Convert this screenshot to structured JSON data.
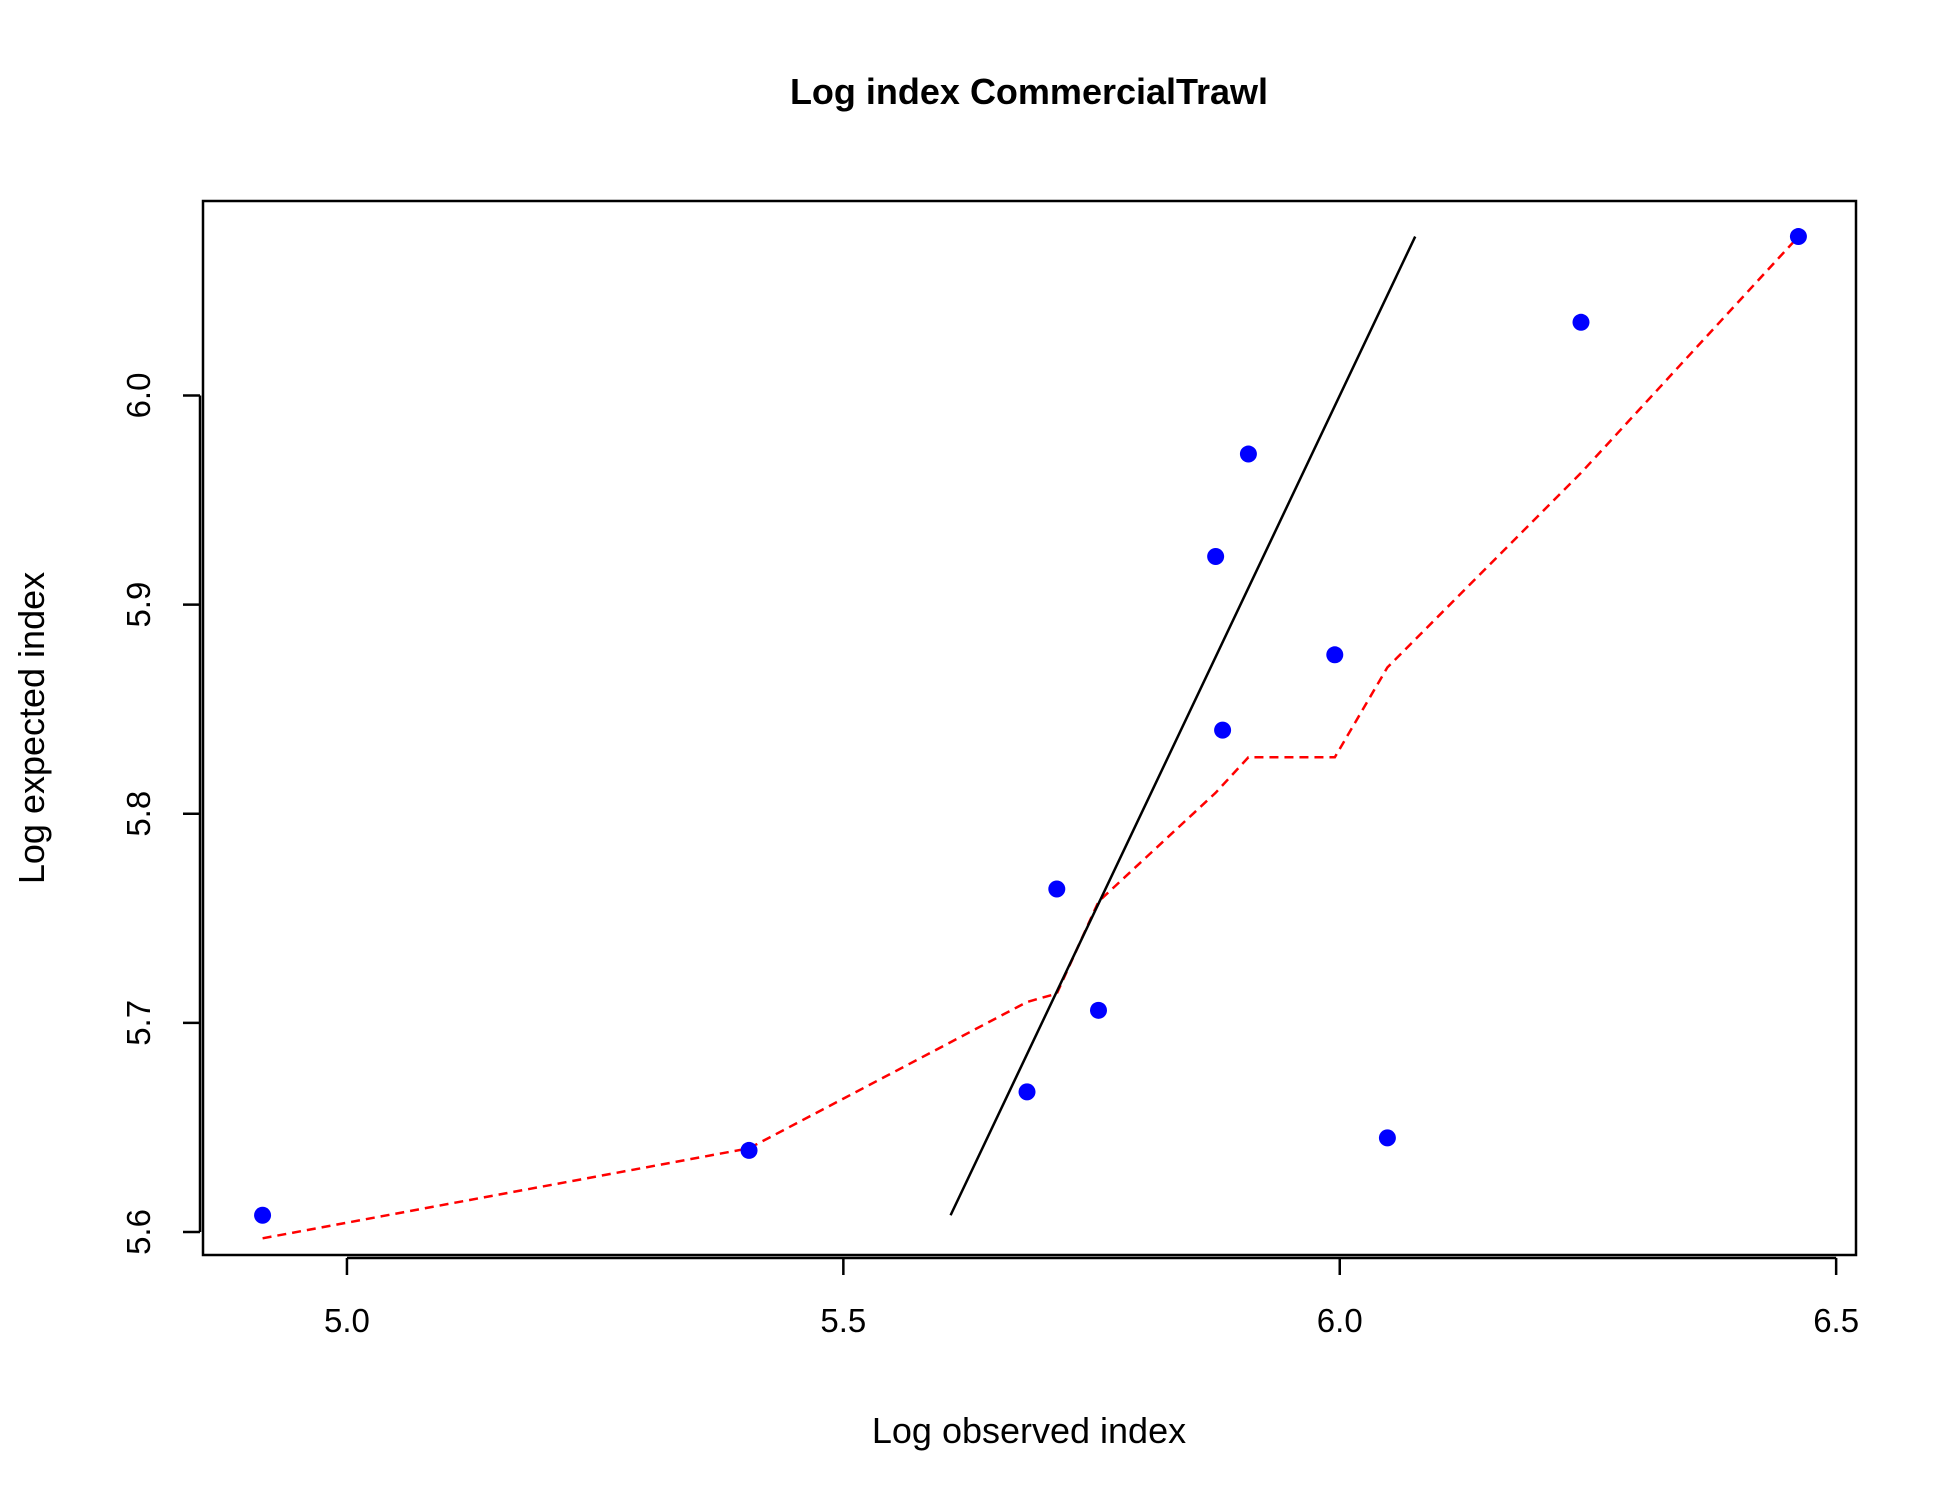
{
  "chart_data": {
    "type": "scatter",
    "title": "Log index CommercialTrawl",
    "xlabel": "Log observed index",
    "ylabel": "Log expected index",
    "xlim": [
      4.855,
      6.52
    ],
    "ylim": [
      5.589,
      6.093
    ],
    "xticks": [
      "5.0",
      "5.5",
      "6.0",
      "6.5"
    ],
    "yticks": [
      "5.6",
      "5.7",
      "5.8",
      "5.9",
      "6.0"
    ],
    "grid": false,
    "colors": {
      "points": "#0000ff",
      "smoother": "#ff0000",
      "reference_line": "#000000",
      "frame": "#000000"
    },
    "points": [
      {
        "x": 4.915,
        "y": 5.608
      },
      {
        "x": 5.405,
        "y": 5.639
      },
      {
        "x": 5.685,
        "y": 5.667
      },
      {
        "x": 5.715,
        "y": 5.764
      },
      {
        "x": 5.757,
        "y": 5.706
      },
      {
        "x": 5.875,
        "y": 5.923
      },
      {
        "x": 5.882,
        "y": 5.84
      },
      {
        "x": 5.908,
        "y": 5.972
      },
      {
        "x": 5.995,
        "y": 5.876
      },
      {
        "x": 6.048,
        "y": 5.645
      },
      {
        "x": 6.243,
        "y": 6.035
      },
      {
        "x": 6.462,
        "y": 6.076
      }
    ],
    "reference_line": [
      {
        "x": 5.608,
        "y": 5.608
      },
      {
        "x": 6.076,
        "y": 6.076
      }
    ],
    "smoother": [
      {
        "x": 4.915,
        "y": 5.597
      },
      {
        "x": 5.405,
        "y": 5.64
      },
      {
        "x": 5.685,
        "y": 5.71
      },
      {
        "x": 5.715,
        "y": 5.714
      },
      {
        "x": 5.757,
        "y": 5.758
      },
      {
        "x": 5.875,
        "y": 5.81
      },
      {
        "x": 5.908,
        "y": 5.827
      },
      {
        "x": 5.995,
        "y": 5.827
      },
      {
        "x": 6.048,
        "y": 5.87
      },
      {
        "x": 6.243,
        "y": 5.963
      },
      {
        "x": 6.462,
        "y": 6.076
      }
    ]
  }
}
